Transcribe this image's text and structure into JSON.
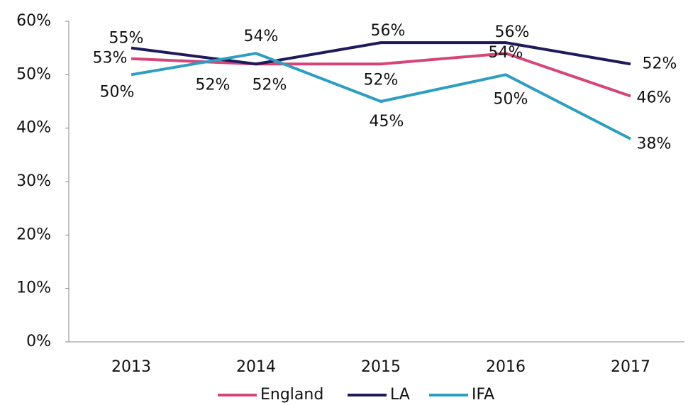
{
  "chart_data": {
    "type": "line",
    "categories": [
      "2013",
      "2014",
      "2015",
      "2016",
      "2017"
    ],
    "series": [
      {
        "name": "England",
        "color": "#d6457a",
        "values": [
          53,
          52,
          52,
          54,
          46
        ],
        "value_labels": [
          "53%",
          "52%",
          "52%",
          "54%",
          "46%"
        ]
      },
      {
        "name": "LA",
        "color": "#1f1a5a",
        "values": [
          55,
          52,
          56,
          56,
          52
        ],
        "value_labels": [
          "55%",
          "52%",
          "56%",
          "56%",
          "52%"
        ]
      },
      {
        "name": "IFA",
        "color": "#2e9ec0",
        "values": [
          50,
          54,
          45,
          50,
          38
        ],
        "value_labels": [
          "50%",
          "54%",
          "45%",
          "50%",
          "38%"
        ]
      }
    ],
    "ylim": [
      0,
      60
    ],
    "yticks": [
      {
        "value": 0,
        "label": "0%"
      },
      {
        "value": 10,
        "label": "10%"
      },
      {
        "value": 20,
        "label": "20%"
      },
      {
        "value": 30,
        "label": "30%"
      },
      {
        "value": 40,
        "label": "40%"
      },
      {
        "value": 50,
        "label": "50%"
      },
      {
        "value": 60,
        "label": "60%"
      }
    ],
    "grid": false,
    "legend": "bottom"
  }
}
